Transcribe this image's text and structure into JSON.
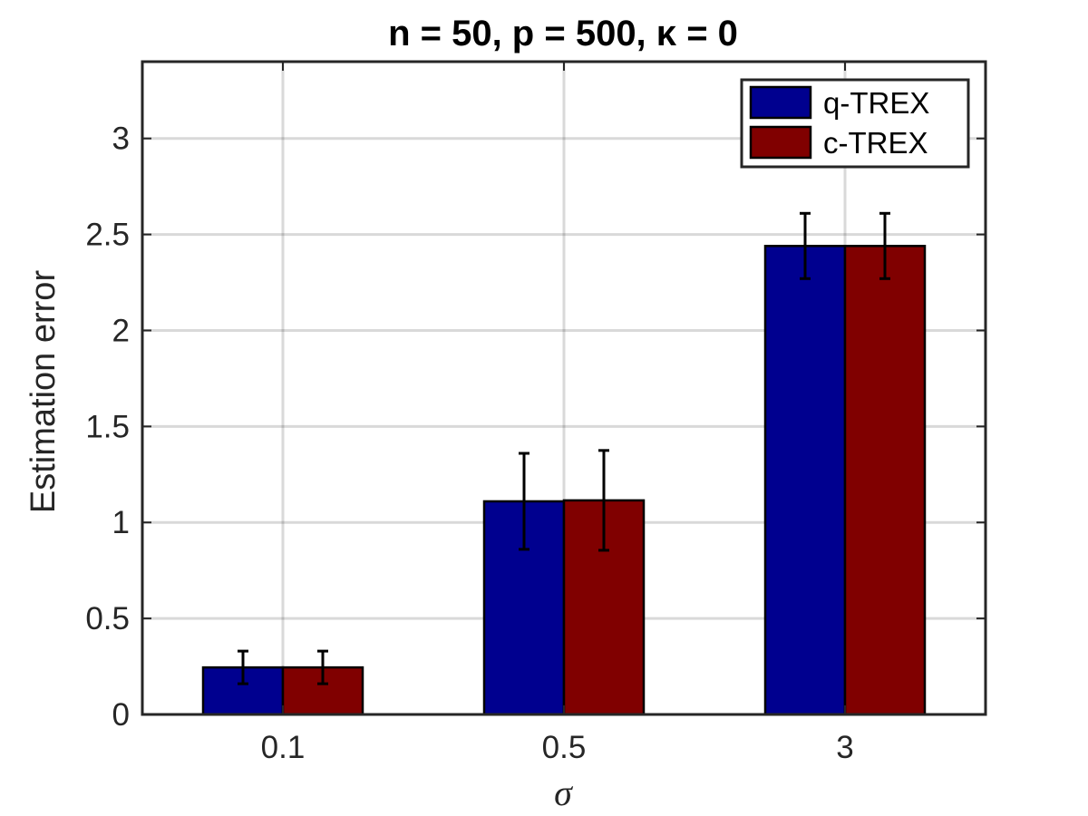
{
  "chart_data": {
    "type": "bar",
    "title": "n = 50, p = 500, κ = 0",
    "xlabel": "σ",
    "ylabel": "Estimation error",
    "categories": [
      "0.1",
      "0.5",
      "3"
    ],
    "ylim": [
      0,
      3.4
    ],
    "yticks": [
      "0",
      "0.5",
      "1",
      "1.5",
      "2",
      "2.5",
      "3"
    ],
    "grid": true,
    "legend_position": "top-right",
    "series": [
      {
        "name": "q-TREX",
        "color": "#00008f",
        "values": [
          0.245,
          1.11,
          2.44
        ],
        "errors": [
          0.085,
          0.25,
          0.17
        ]
      },
      {
        "name": "c-TREX",
        "color": "#800000",
        "values": [
          0.245,
          1.115,
          2.44
        ],
        "errors": [
          0.085,
          0.26,
          0.17
        ]
      }
    ]
  }
}
